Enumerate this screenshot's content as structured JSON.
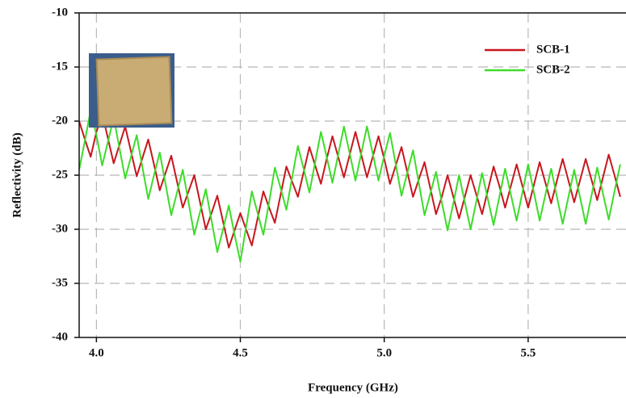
{
  "chart_data": {
    "type": "line",
    "xlabel": "Frequency (GHz)",
    "ylabel": "Reflectivity (dB)",
    "x": [
      3.94,
      3.96,
      3.98,
      4.0,
      4.02,
      4.04,
      4.06,
      4.08,
      4.1,
      4.12,
      4.14,
      4.16,
      4.18,
      4.2,
      4.22,
      4.24,
      4.26,
      4.28,
      4.3,
      4.32,
      4.34,
      4.36,
      4.38,
      4.4,
      4.42,
      4.44,
      4.46,
      4.48,
      4.5,
      4.52,
      4.54,
      4.56,
      4.58,
      4.6,
      4.62,
      4.64,
      4.66,
      4.68,
      4.7,
      4.72,
      4.74,
      4.76,
      4.78,
      4.8,
      4.82,
      4.84,
      4.86,
      4.88,
      4.9,
      4.92,
      4.94,
      4.96,
      4.98,
      5.0,
      5.02,
      5.04,
      5.06,
      5.08,
      5.1,
      5.12,
      5.14,
      5.16,
      5.18,
      5.2,
      5.22,
      5.24,
      5.26,
      5.28,
      5.3,
      5.32,
      5.34,
      5.36,
      5.38,
      5.4,
      5.42,
      5.44,
      5.46,
      5.48,
      5.5,
      5.52,
      5.54,
      5.56,
      5.58,
      5.6,
      5.62,
      5.64,
      5.66,
      5.68,
      5.7,
      5.72,
      5.74,
      5.76,
      5.78,
      5.8,
      5.82
    ],
    "series": [
      {
        "name": "SCB-1",
        "color": "#c8161e",
        "values": [
          -20.0,
          -21.7,
          -23.3,
          -21.0,
          -19.3,
          -21.6,
          -23.9,
          -22.2,
          -20.5,
          -22.8,
          -25.1,
          -23.4,
          -21.7,
          -24.0,
          -26.4,
          -24.8,
          -23.2,
          -25.6,
          -28.0,
          -26.5,
          -25.0,
          -27.5,
          -30.0,
          -28.5,
          -26.9,
          -29.3,
          -31.7,
          -30.1,
          -28.5,
          -30.0,
          -31.5,
          -29.0,
          -26.5,
          -28.0,
          -29.4,
          -26.8,
          -24.2,
          -25.6,
          -27.0,
          -24.7,
          -22.4,
          -24.1,
          -25.8,
          -23.5,
          -21.4,
          -23.3,
          -25.2,
          -23.1,
          -21.0,
          -23.1,
          -25.2,
          -23.3,
          -21.4,
          -23.5,
          -25.8,
          -24.1,
          -22.4,
          -24.7,
          -27.0,
          -25.4,
          -23.8,
          -26.2,
          -28.6,
          -27.0,
          -25.0,
          -27.0,
          -29.0,
          -27.0,
          -25.0,
          -26.8,
          -28.6,
          -26.4,
          -24.2,
          -26.0,
          -28.0,
          -26.0,
          -24.0,
          -26.0,
          -28.0,
          -25.9,
          -23.8,
          -25.7,
          -27.6,
          -25.5,
          -23.5,
          -25.5,
          -27.5,
          -25.5,
          -23.5,
          -25.4,
          -27.3,
          -25.2,
          -23.1,
          -25.0,
          -27.0
        ]
      },
      {
        "name": "SCB-2",
        "color": "#3ddc2a",
        "values": [
          -24.5,
          -21.8,
          -19.0,
          -21.3,
          -24.1,
          -21.9,
          -19.7,
          -22.5,
          -25.3,
          -23.3,
          -21.3,
          -24.3,
          -27.2,
          -25.0,
          -22.9,
          -25.8,
          -28.7,
          -26.6,
          -24.5,
          -27.5,
          -30.5,
          -28.4,
          -26.3,
          -29.2,
          -32.1,
          -30.0,
          -27.8,
          -30.5,
          -33.0,
          -29.8,
          -26.5,
          -28.5,
          -30.5,
          -27.5,
          -24.3,
          -26.2,
          -28.2,
          -25.2,
          -22.3,
          -24.4,
          -26.6,
          -23.8,
          -21.0,
          -23.3,
          -25.7,
          -23.1,
          -20.5,
          -23.0,
          -25.5,
          -23.0,
          -20.5,
          -23.0,
          -25.5,
          -23.2,
          -21.1,
          -24.0,
          -26.9,
          -24.8,
          -22.7,
          -25.7,
          -28.7,
          -26.7,
          -24.7,
          -27.5,
          -30.1,
          -27.6,
          -25.0,
          -27.5,
          -30.0,
          -27.4,
          -24.8,
          -27.2,
          -29.6,
          -27.0,
          -24.4,
          -26.8,
          -29.2,
          -26.6,
          -24.0,
          -26.6,
          -29.2,
          -26.8,
          -24.4,
          -27.0,
          -29.5,
          -27.0,
          -24.5,
          -27.0,
          -29.5,
          -26.9,
          -24.3,
          -26.7,
          -29.1,
          -26.5,
          -24.0
        ]
      }
    ],
    "xlim": [
      3.94,
      5.84
    ],
    "xticks": [
      {
        "value": 4,
        "label": "4.0"
      },
      4.5,
      {
        "value": 5,
        "label": "5.0"
      },
      5.5
    ],
    "ylim": [
      -40,
      -10
    ],
    "yticks": [
      -10,
      -15,
      -20,
      -25,
      -30,
      -35,
      -40
    ],
    "grid": true,
    "legend": "upper right"
  }
}
